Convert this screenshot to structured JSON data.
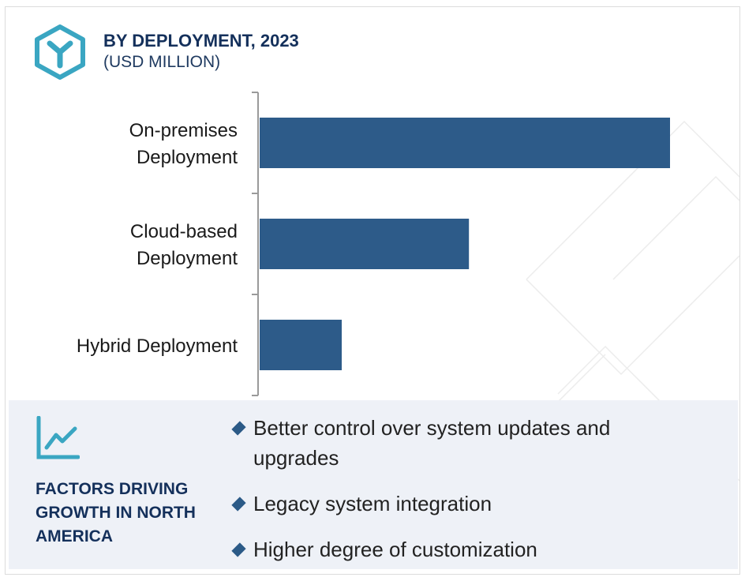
{
  "header": {
    "title": "BY DEPLOYMENT, 2023",
    "subtitle": "(USD MILLION)",
    "icon": "cube-logo-icon"
  },
  "chart_data": {
    "type": "bar",
    "orientation": "horizontal",
    "categories": [
      [
        "On-premises",
        "Deployment"
      ],
      [
        "Cloud-based",
        "Deployment"
      ],
      [
        "Hybrid Deployment"
      ]
    ],
    "values": [
      100,
      51,
      20
    ],
    "xlim": [
      0,
      100
    ],
    "grid": false,
    "bar_color": "#2d5b89"
  },
  "panel": {
    "icon": "line-chart-icon",
    "title": "FACTORS DRIVING GROWTH IN NORTH AMERICA",
    "factors": [
      "Better control over system updates and upgrades",
      "Legacy system integration",
      "Higher degree of customization"
    ]
  },
  "colors": {
    "accent": "#3aa6c2",
    "navy": "#14305b",
    "panel_bg": "#eef1f7"
  }
}
